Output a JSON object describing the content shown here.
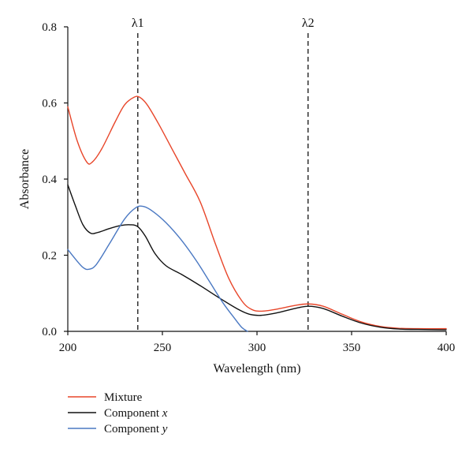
{
  "chart_data": {
    "type": "line",
    "title": "",
    "xlabel": "Wavelength (nm)",
    "ylabel": "Absorbance",
    "xlim": [
      200,
      400
    ],
    "ylim": [
      0,
      0.8
    ],
    "x_ticks": [
      200,
      250,
      300,
      350,
      400
    ],
    "x_tick_labels": [
      "200",
      "250",
      "300",
      "350",
      "400"
    ],
    "y_ticks": [
      0,
      0.2,
      0.4,
      0.6,
      0.8
    ],
    "y_tick_labels": [
      "0.0",
      "0.2",
      "0.4",
      "0.6",
      "0.8"
    ],
    "grid": false,
    "legend_position": "bottom-left",
    "markers": [
      {
        "label": "λ1",
        "x": 237
      },
      {
        "label": "λ2",
        "x": 327
      }
    ],
    "series": [
      {
        "name": "Mixture",
        "color": "#e8462a",
        "x": [
          200,
          205,
          210,
          213,
          218,
          225,
          230,
          235,
          238,
          242,
          248,
          255,
          262,
          270,
          278,
          285,
          292,
          297,
          302,
          310,
          320,
          327,
          335,
          345,
          355,
          365,
          375,
          385,
          400
        ],
        "y": [
          0.59,
          0.5,
          0.445,
          0.445,
          0.48,
          0.55,
          0.595,
          0.615,
          0.615,
          0.595,
          0.545,
          0.48,
          0.415,
          0.34,
          0.23,
          0.14,
          0.08,
          0.058,
          0.053,
          0.058,
          0.068,
          0.072,
          0.066,
          0.045,
          0.025,
          0.013,
          0.008,
          0.007,
          0.007
        ]
      },
      {
        "name": "Component x",
        "color": "#111111",
        "x": [
          200,
          204,
          208,
          212,
          216,
          222,
          228,
          233,
          237,
          241,
          246,
          252,
          260,
          270,
          280,
          290,
          296,
          302,
          310,
          320,
          327,
          335,
          345,
          355,
          365,
          375,
          385,
          400
        ],
        "y": [
          0.385,
          0.33,
          0.28,
          0.258,
          0.26,
          0.27,
          0.278,
          0.28,
          0.275,
          0.25,
          0.205,
          0.172,
          0.15,
          0.12,
          0.088,
          0.058,
          0.045,
          0.042,
          0.048,
          0.06,
          0.066,
          0.06,
          0.04,
          0.022,
          0.011,
          0.006,
          0.005,
          0.004
        ]
      },
      {
        "name": "Component y",
        "color": "#4a78c2",
        "x": [
          200,
          204,
          208,
          211,
          215,
          222,
          230,
          236,
          240,
          245,
          252,
          260,
          268,
          275,
          282,
          288,
          292,
          295
        ],
        "y": [
          0.215,
          0.19,
          0.168,
          0.163,
          0.175,
          0.23,
          0.295,
          0.325,
          0.328,
          0.315,
          0.285,
          0.24,
          0.185,
          0.13,
          0.075,
          0.035,
          0.01,
          0.0
        ]
      }
    ]
  }
}
